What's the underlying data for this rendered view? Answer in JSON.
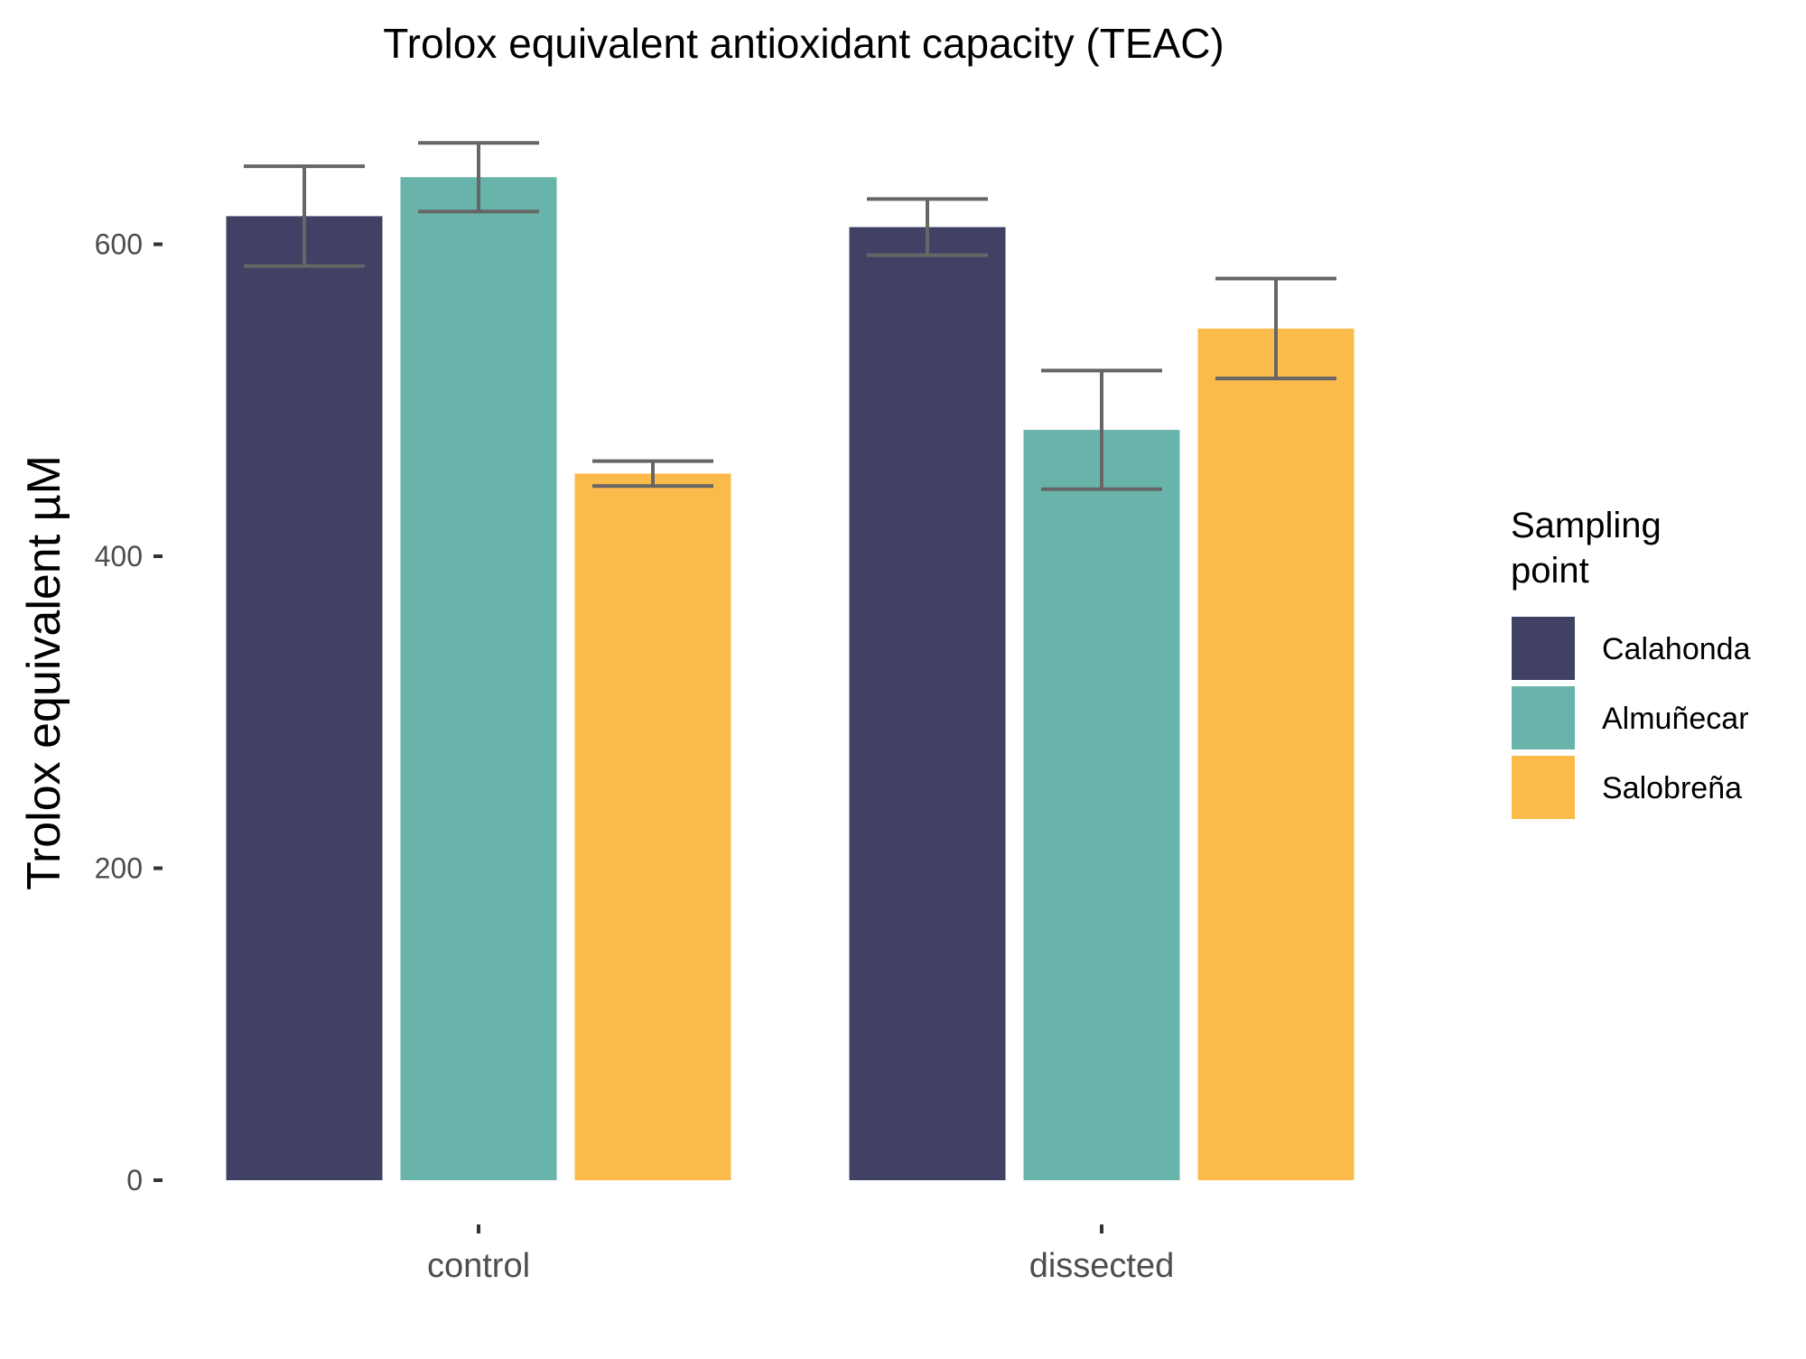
{
  "chart_data": {
    "type": "bar",
    "title": "Trolox equivalent antioxidant capacity (TEAC)",
    "xlabel": "",
    "ylabel": "Trolox equivalent µM",
    "categories": [
      "control",
      "dissected"
    ],
    "ylim": [
      0,
      680
    ],
    "yticks": [
      0,
      200,
      400,
      600
    ],
    "grid": false,
    "legend": {
      "title": "Sampling\npoint",
      "position": "right"
    },
    "series": [
      {
        "name": "Calahonda",
        "color": "#414165",
        "values": [
          618,
          611
        ],
        "errors": [
          32,
          18
        ]
      },
      {
        "name": "Almuñecar",
        "color": "#69b4aa",
        "values": [
          643,
          481
        ],
        "errors": [
          22,
          38
        ]
      },
      {
        "name": "Salobreña",
        "color": "#fabb4a",
        "values": [
          453,
          546
        ],
        "errors": [
          8,
          32
        ]
      }
    ]
  }
}
